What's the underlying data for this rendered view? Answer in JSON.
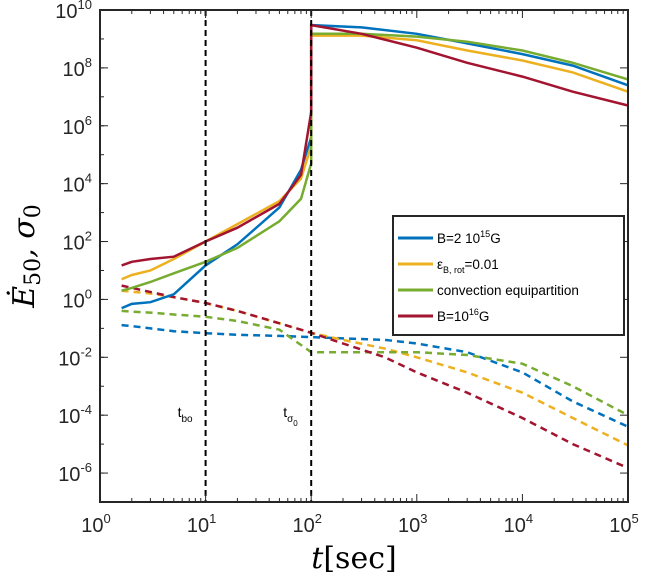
{
  "chart_data": {
    "type": "line",
    "xscale": "log",
    "yscale": "log",
    "xlim": [
      1,
      100000
    ],
    "ylim": [
      1e-07,
      10000000000
    ],
    "x_ticks": [
      1,
      10,
      100,
      1000,
      10000,
      100000
    ],
    "x_tick_labels": [
      {
        "base": "10",
        "exp": "0"
      },
      {
        "base": "10",
        "exp": "1"
      },
      {
        "base": "10",
        "exp": "2"
      },
      {
        "base": "10",
        "exp": "3"
      },
      {
        "base": "10",
        "exp": "4"
      },
      {
        "base": "10",
        "exp": "5"
      }
    ],
    "y_ticks": [
      1e-06,
      0.0001,
      0.01,
      1,
      100,
      10000,
      1000000,
      100000000,
      10000000000
    ],
    "y_tick_labels": [
      {
        "base": "10",
        "exp": "-6"
      },
      {
        "base": "10",
        "exp": "-4"
      },
      {
        "base": "10",
        "exp": "-2"
      },
      {
        "base": "10",
        "exp": "0"
      },
      {
        "base": "10",
        "exp": "2"
      },
      {
        "base": "10",
        "exp": "4"
      },
      {
        "base": "10",
        "exp": "6"
      },
      {
        "base": "10",
        "exp": "8"
      },
      {
        "base": "10",
        "exp": "10"
      }
    ],
    "xlabel": {
      "var": "t",
      "unit": "[sec]"
    },
    "ylabel": {
      "var": "Ė",
      "sub": "50",
      "sep": ", σ",
      "sub2": "0"
    },
    "legend_position": "center-right",
    "vlines": [
      {
        "x": 10,
        "label": "t",
        "sub": "bo",
        "label_y": 0.0001
      },
      {
        "x": 100,
        "label": "t",
        "sub": "σ",
        "subsub": "0",
        "label_y": 0.0001
      }
    ],
    "series": [
      {
        "name": "B=2 10^15G",
        "legend": {
          "text": "B=2 10",
          "sup": "15",
          "after": "G"
        },
        "color": "#0072BD",
        "solid": [
          [
            1.6,
            0.5
          ],
          [
            2,
            0.7
          ],
          [
            3,
            0.8
          ],
          [
            5,
            1.5
          ],
          [
            10,
            15
          ],
          [
            20,
            80
          ],
          [
            50,
            1500
          ],
          [
            80,
            30000
          ],
          [
            100,
            400000
          ],
          [
            100,
            3000000000
          ],
          [
            300,
            2500000000
          ],
          [
            1000,
            1500000000
          ],
          [
            3000,
            700000000
          ],
          [
            10000,
            300000000
          ],
          [
            30000,
            120000000
          ],
          [
            100000,
            25000000
          ]
        ],
        "dashed": [
          [
            1.6,
            0.13
          ],
          [
            2,
            0.12
          ],
          [
            3,
            0.1
          ],
          [
            5,
            0.08
          ],
          [
            10,
            0.068
          ],
          [
            20,
            0.06
          ],
          [
            50,
            0.055
          ],
          [
            100,
            0.05
          ],
          [
            200,
            0.045
          ],
          [
            500,
            0.04
          ],
          [
            1000,
            0.03
          ],
          [
            3000,
            0.015
          ],
          [
            10000,
            0.003
          ],
          [
            30000,
            0.0003
          ],
          [
            100000,
            4e-05
          ]
        ]
      },
      {
        "name": "ε_B,rot=0.01",
        "legend": {
          "text": "ε",
          "sub": "B, rot",
          "after": "=0.01"
        },
        "color": "#EDB120",
        "solid": [
          [
            1.6,
            5
          ],
          [
            2,
            7
          ],
          [
            3,
            10
          ],
          [
            5,
            25
          ],
          [
            10,
            100
          ],
          [
            20,
            400
          ],
          [
            50,
            2500
          ],
          [
            80,
            15000
          ],
          [
            100,
            200000
          ],
          [
            100,
            1300000000
          ],
          [
            300,
            1300000000
          ],
          [
            1000,
            900000000
          ],
          [
            3000,
            400000000
          ],
          [
            10000,
            180000000
          ],
          [
            30000,
            70000000
          ],
          [
            100000,
            15000000
          ]
        ],
        "dashed": [
          [
            1.6,
            2
          ],
          [
            3,
            1.6
          ],
          [
            5,
            1.2
          ],
          [
            10,
            0.75
          ],
          [
            20,
            0.4
          ],
          [
            50,
            0.15
          ],
          [
            100,
            0.07
          ],
          [
            200,
            0.04
          ],
          [
            500,
            0.02
          ],
          [
            1000,
            0.01
          ],
          [
            3000,
            0.003
          ],
          [
            10000,
            0.0006
          ],
          [
            30000,
            8e-05
          ],
          [
            100000,
            9e-06
          ]
        ]
      },
      {
        "name": "convection equipartition",
        "legend": {
          "text": "convection equipartition"
        },
        "color": "#77AC30",
        "solid": [
          [
            1.6,
            2
          ],
          [
            2,
            2.5
          ],
          [
            3,
            4
          ],
          [
            5,
            8
          ],
          [
            10,
            20
          ],
          [
            20,
            60
          ],
          [
            50,
            500
          ],
          [
            80,
            3000
          ],
          [
            100,
            50000
          ],
          [
            100,
            1500000000
          ],
          [
            300,
            1500000000
          ],
          [
            1000,
            1200000000
          ],
          [
            3000,
            800000000
          ],
          [
            10000,
            400000000
          ],
          [
            30000,
            150000000
          ],
          [
            100000,
            40000000
          ]
        ],
        "dashed": [
          [
            1.6,
            0.4
          ],
          [
            2,
            0.38
          ],
          [
            3,
            0.35
          ],
          [
            5,
            0.3
          ],
          [
            10,
            0.25
          ],
          [
            20,
            0.18
          ],
          [
            50,
            0.09
          ],
          [
            100,
            0.015
          ],
          [
            200,
            0.015
          ],
          [
            500,
            0.015
          ],
          [
            1000,
            0.015
          ],
          [
            3000,
            0.012
          ],
          [
            10000,
            0.006
          ],
          [
            30000,
            0.001
          ],
          [
            100000,
            0.0001
          ]
        ]
      },
      {
        "name": "B=10^16G",
        "legend": {
          "text": "B=10",
          "sup": "16",
          "after": "G"
        },
        "color": "#A2142F",
        "solid": [
          [
            1.6,
            15
          ],
          [
            2,
            20
          ],
          [
            3,
            25
          ],
          [
            5,
            30
          ],
          [
            10,
            100
          ],
          [
            20,
            300
          ],
          [
            50,
            2000
          ],
          [
            80,
            20000
          ],
          [
            100,
            3000000
          ],
          [
            100,
            3000000000
          ],
          [
            300,
            1500000000
          ],
          [
            1000,
            500000000
          ],
          [
            3000,
            150000000
          ],
          [
            10000,
            50000000
          ],
          [
            30000,
            15000000
          ],
          [
            100000,
            5000000
          ]
        ],
        "dashed": [
          [
            1.6,
            3
          ],
          [
            3,
            1.8
          ],
          [
            5,
            1.2
          ],
          [
            10,
            0.75
          ],
          [
            20,
            0.4
          ],
          [
            50,
            0.15
          ],
          [
            100,
            0.07
          ],
          [
            200,
            0.03
          ],
          [
            500,
            0.01
          ],
          [
            1000,
            0.003
          ],
          [
            3000,
            0.0006
          ],
          [
            10000,
            8e-05
          ],
          [
            30000,
            1e-05
          ],
          [
            100000,
            1.5e-06
          ]
        ]
      }
    ]
  }
}
